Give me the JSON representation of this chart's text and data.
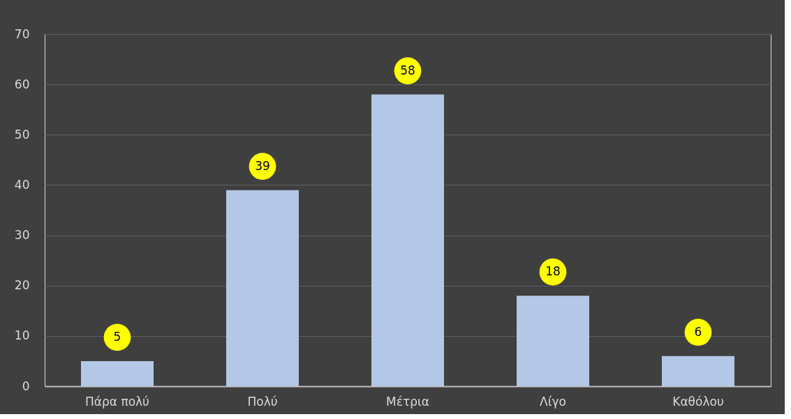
{
  "chart_data": {
    "type": "bar",
    "categories": [
      "Πάρα πολύ",
      "Πολύ",
      "Μέτρια",
      "Λίγο",
      "Καθόλου"
    ],
    "values": [
      5,
      39,
      58,
      18,
      6
    ],
    "color": "#b4c7e7",
    "ylim": [
      0,
      70
    ],
    "yticks": [
      0,
      10,
      20,
      30,
      40,
      50,
      60,
      70
    ],
    "grid": "y",
    "data_labels": true
  }
}
